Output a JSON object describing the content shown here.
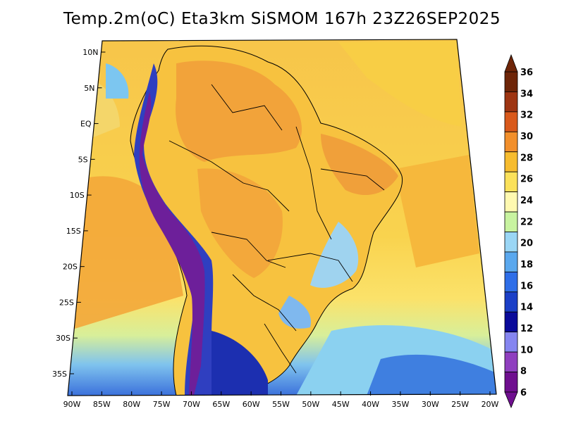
{
  "title": "Temp.2m(oC) Eta3km SiSMOM 167h 23Z26SEP2025",
  "map": {
    "projection": "conic",
    "variable": "2 m air temperature",
    "units": "oC",
    "lat_ticks": [
      "10N",
      "5N",
      "EQ",
      "5S",
      "10S",
      "15S",
      "20S",
      "25S",
      "30S",
      "35S"
    ],
    "lat_values": [
      10,
      5,
      0,
      -5,
      -10,
      -15,
      -20,
      -25,
      -30,
      -35
    ],
    "lon_ticks": [
      "90W",
      "85W",
      "80W",
      "75W",
      "70W",
      "65W",
      "60W",
      "55W",
      "50W",
      "45W",
      "40W",
      "35W",
      "30W",
      "25W",
      "20W"
    ],
    "lon_values": [
      -90,
      -85,
      -80,
      -75,
      -70,
      -65,
      -60,
      -55,
      -50,
      -45,
      -40,
      -35,
      -30,
      -25,
      -20
    ]
  },
  "colorbar": {
    "labels": [
      "6",
      "8",
      "10",
      "12",
      "14",
      "16",
      "18",
      "20",
      "22",
      "24",
      "26",
      "28",
      "30",
      "32",
      "34",
      "36"
    ],
    "min": 6,
    "max": 36,
    "colors": [
      "#6f0f8f",
      "#8f3fbf",
      "#8585f0",
      "#0a0a9a",
      "#1b3fc7",
      "#2e6ee8",
      "#5aa8ee",
      "#9ad6f5",
      "#c8f3a0",
      "#fff9b0",
      "#fbe15a",
      "#f7bc2e",
      "#f28f2b",
      "#d9591b",
      "#9e3512",
      "#6e2508"
    ]
  }
}
